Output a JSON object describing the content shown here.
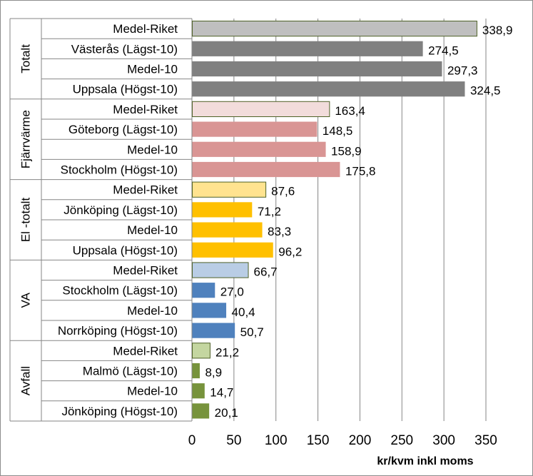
{
  "chart_data": {
    "type": "bar",
    "orientation": "horizontal",
    "xlabel": "kr/kvm inkl moms",
    "xlim": [
      0,
      350
    ],
    "xticks": [
      0,
      50,
      100,
      150,
      200,
      250,
      300,
      350
    ],
    "grid": "vertical",
    "groups": [
      {
        "name": "Totalt",
        "colors": {
          "fill": "#808080",
          "highlight_fill": "#bfbfbf"
        },
        "bars": [
          {
            "label": "Medel-Riket",
            "value": 338.9,
            "value_label": "338,9",
            "highlight": true
          },
          {
            "label": "Västerås (Lägst-10)",
            "value": 274.5,
            "value_label": "274,5"
          },
          {
            "label": "Medel-10",
            "value": 297.3,
            "value_label": "297,3"
          },
          {
            "label": "Uppsala (Högst-10)",
            "value": 324.5,
            "value_label": "324,5"
          }
        ]
      },
      {
        "name": "Fjärrvärme",
        "colors": {
          "fill": "#d99594",
          "highlight_fill": "#f2dcdb"
        },
        "bars": [
          {
            "label": "Medel-Riket",
            "value": 163.4,
            "value_label": "163,4",
            "highlight": true
          },
          {
            "label": "Göteborg (Lägst-10)",
            "value": 148.5,
            "value_label": "148,5"
          },
          {
            "label": "Medel-10",
            "value": 158.9,
            "value_label": "158,9"
          },
          {
            "label": "Stockholm (Högst-10)",
            "value": 175.8,
            "value_label": "175,8"
          }
        ]
      },
      {
        "name": "El -totalt",
        "colors": {
          "fill": "#ffc000",
          "highlight_fill": "#ffe38f"
        },
        "bars": [
          {
            "label": "Medel-Riket",
            "value": 87.6,
            "value_label": "87,6",
            "highlight": true
          },
          {
            "label": "Jönköping (Lägst-10)",
            "value": 71.2,
            "value_label": "71,2"
          },
          {
            "label": "Medel-10",
            "value": 83.3,
            "value_label": "83,3"
          },
          {
            "label": "Uppsala (Högst-10)",
            "value": 96.2,
            "value_label": "96,2"
          }
        ]
      },
      {
        "name": "VA",
        "colors": {
          "fill": "#4f81bd",
          "highlight_fill": "#b9cde5"
        },
        "bars": [
          {
            "label": "Medel-Riket",
            "value": 66.7,
            "value_label": "66,7",
            "highlight": true
          },
          {
            "label": "Stockholm (Lägst-10)",
            "value": 27.0,
            "value_label": "27,0"
          },
          {
            "label": "Medel-10",
            "value": 40.4,
            "value_label": "40,4"
          },
          {
            "label": "Norrköping (Högst-10)",
            "value": 50.7,
            "value_label": "50,7"
          }
        ]
      },
      {
        "name": "Avfall",
        "colors": {
          "fill": "#77933c",
          "highlight_fill": "#c4d6a0"
        },
        "bars": [
          {
            "label": "Medel-Riket",
            "value": 21.2,
            "value_label": "21,2",
            "highlight": true
          },
          {
            "label": "Malmö (Lägst-10)",
            "value": 8.9,
            "value_label": "8,9"
          },
          {
            "label": "Medel-10",
            "value": 14.7,
            "value_label": "14,7"
          },
          {
            "label": "Jönköping (Högst-10)",
            "value": 20.1,
            "value_label": "20,1"
          }
        ]
      }
    ]
  }
}
